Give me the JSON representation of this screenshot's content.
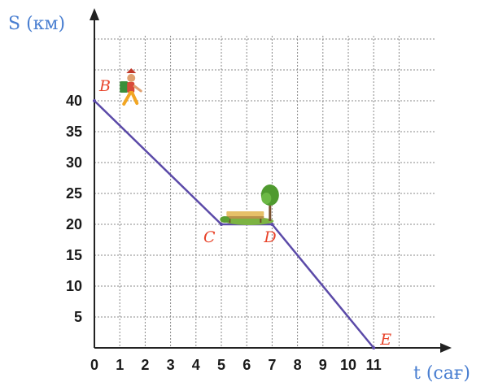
{
  "chart_data": {
    "type": "line",
    "xlabel": "t (сағ)",
    "ylabel": "S (км)",
    "xlim": [
      0,
      13
    ],
    "ylim": [
      0,
      50
    ],
    "x_ticks": [
      "0",
      "1",
      "2",
      "3",
      "4",
      "5",
      "6",
      "7",
      "8",
      "9",
      "10",
      "11"
    ],
    "y_ticks": [
      "5",
      "10",
      "15",
      "20",
      "25",
      "30",
      "35",
      "40"
    ],
    "grid": true,
    "series": [
      {
        "points": [
          {
            "x": 0,
            "y": 40
          },
          {
            "x": 5,
            "y": 20
          },
          {
            "x": 7,
            "y": 20
          },
          {
            "x": 11,
            "y": 0
          }
        ],
        "color": "#5b4aa8"
      }
    ],
    "annotations": [
      {
        "label": "B",
        "x": 0,
        "y": 40
      },
      {
        "label": "C",
        "x": 5,
        "y": 20
      },
      {
        "label": "D",
        "x": 7,
        "y": 20
      },
      {
        "label": "E",
        "x": 11,
        "y": 0
      }
    ],
    "illustrations": [
      "hiker-icon",
      "bench-tree-icon"
    ]
  },
  "colors": {
    "axis": "#222222",
    "grid": "#888888",
    "axis_title": "#4a7fd1",
    "point_label": "#e8442b",
    "series": "#5b4aa8"
  }
}
